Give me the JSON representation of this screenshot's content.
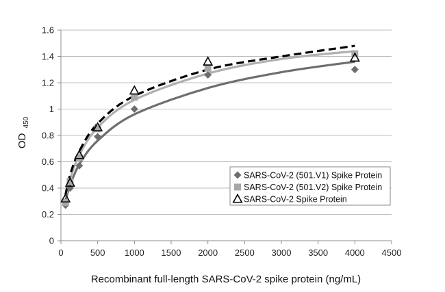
{
  "chart_data": {
    "type": "scatter",
    "title": "",
    "xlabel": "Recombinant full-length SARS-CoV-2 spike protein (ng/mL)",
    "ylabel": "OD",
    "ylabel_sub": "450",
    "xlim": [
      0,
      4500
    ],
    "ylim": [
      0,
      1.6
    ],
    "xticks": [
      "0",
      "500",
      "1000",
      "1500",
      "2000",
      "2500",
      "3000",
      "3500",
      "4000",
      "4500"
    ],
    "yticks": [
      "0",
      "0.2",
      "0.4",
      "0.6",
      "0.8",
      "1",
      "1.2",
      "1.4",
      "1.6"
    ],
    "grid": "horizontal",
    "legend_position": "lower-right",
    "series": [
      {
        "name": "SARS-CoV-2  (501.V1) Spike Protein",
        "marker": "diamond",
        "color": "#6e6e6e",
        "trend_color": "#6e6e6e",
        "trend_style": "solid",
        "x": [
          62.5,
          125,
          250,
          500,
          1000,
          2000,
          4000
        ],
        "y": [
          0.27,
          0.4,
          0.57,
          0.79,
          1.0,
          1.26,
          1.3
        ],
        "trend": [
          [
            62.5,
            0.31
          ],
          [
            125,
            0.42
          ],
          [
            250,
            0.58
          ],
          [
            500,
            0.76
          ],
          [
            1000,
            0.96
          ],
          [
            2000,
            1.16
          ],
          [
            3000,
            1.28
          ],
          [
            4000,
            1.36
          ]
        ]
      },
      {
        "name": "SARS-CoV-2  (501.V2) Spike Protein",
        "marker": "square",
        "color": "#a8a8a8",
        "trend_color": "#b0b0b0",
        "trend_style": "solid",
        "x": [
          62.5,
          125,
          250,
          500,
          1000,
          2000,
          4000
        ],
        "y": [
          0.29,
          0.45,
          0.63,
          0.85,
          1.09,
          1.31,
          1.42
        ],
        "trend": [
          [
            62.5,
            0.33
          ],
          [
            125,
            0.47
          ],
          [
            250,
            0.65
          ],
          [
            500,
            0.86
          ],
          [
            1000,
            1.07
          ],
          [
            2000,
            1.27
          ],
          [
            3000,
            1.38
          ],
          [
            4000,
            1.44
          ]
        ]
      },
      {
        "name": "SARS-CoV-2  Spike Protein",
        "marker": "triangle-open",
        "color": "#000000",
        "trend_color": "#000000",
        "trend_style": "dashed",
        "x": [
          62.5,
          125,
          250,
          500,
          1000,
          2000,
          4000
        ],
        "y": [
          0.32,
          0.44,
          0.65,
          0.86,
          1.14,
          1.36,
          1.39
        ],
        "trend": [
          [
            62.5,
            0.35
          ],
          [
            125,
            0.5
          ],
          [
            250,
            0.68
          ],
          [
            500,
            0.89
          ],
          [
            1000,
            1.1
          ],
          [
            2000,
            1.3
          ],
          [
            3000,
            1.4
          ],
          [
            4000,
            1.48
          ]
        ]
      }
    ]
  }
}
